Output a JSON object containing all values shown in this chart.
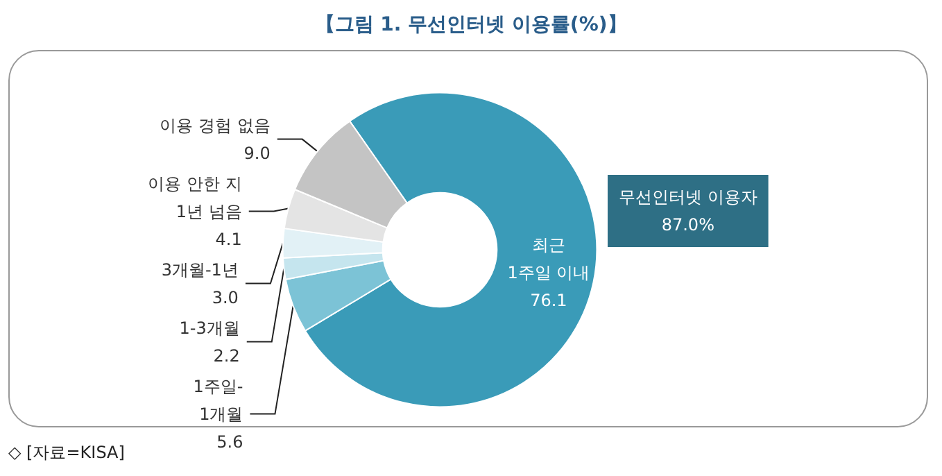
{
  "chart_data": {
    "type": "donut",
    "title": "【그림 1. 무선인터넷 이용률(%)】",
    "categories": [
      "최근\n1주일 이내",
      "1주일-\n1개월",
      "1-3개월",
      "3개월-1년",
      "이용 안한 지\n1년 넘음",
      "이용 경험 없음"
    ],
    "values": [
      76.1,
      5.6,
      2.2,
      3.0,
      4.1,
      9.0
    ],
    "colors": [
      "#3a9bb8",
      "#7cc3d6",
      "#c5e5ee",
      "#e2f1f6",
      "#e4e4e4",
      "#c4c4c4"
    ],
    "value_labels": [
      "76.1",
      "5.6",
      "2.2",
      "3.0",
      "4.1",
      "9.0"
    ],
    "legend": false,
    "annotations": [
      "무선인터넷 이용자\n87.0%",
      "◇ [자료=KISA]"
    ]
  }
}
